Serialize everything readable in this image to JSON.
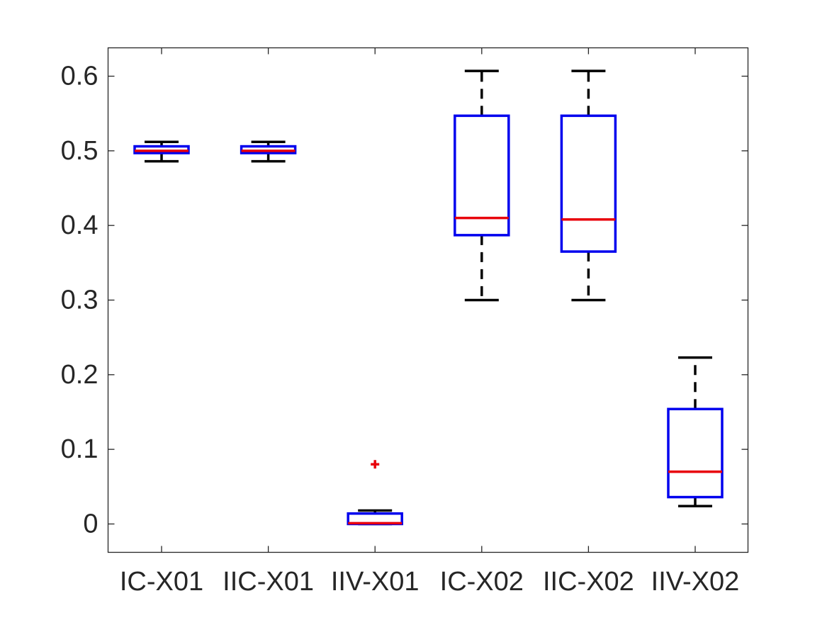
{
  "chart_data": {
    "type": "box",
    "title": "",
    "xlabel": "",
    "ylabel": "",
    "ylim": [
      -0.038,
      0.638
    ],
    "yticks": [
      0,
      0.1,
      0.2,
      0.3,
      0.4,
      0.5,
      0.6
    ],
    "ytick_labels": [
      "0",
      "0.1",
      "0.2",
      "0.3",
      "0.4",
      "0.5",
      "0.6"
    ],
    "categories": [
      "IC-X01",
      "IIC-X01",
      "IIV-X01",
      "IC-X02",
      "IIC-X02",
      "IIV-X02"
    ],
    "boxes": [
      {
        "whisker_low": 0.486,
        "q1": 0.497,
        "median": 0.5,
        "q3": 0.506,
        "whisker_high": 0.512,
        "outliers": []
      },
      {
        "whisker_low": 0.486,
        "q1": 0.497,
        "median": 0.5,
        "q3": 0.506,
        "whisker_high": 0.512,
        "outliers": []
      },
      {
        "whisker_low": 0.0,
        "q1": 0.0,
        "median": 0.001,
        "q3": 0.014,
        "whisker_high": 0.018,
        "outliers": [
          0.08
        ]
      },
      {
        "whisker_low": 0.3,
        "q1": 0.387,
        "median": 0.41,
        "q3": 0.547,
        "whisker_high": 0.607,
        "outliers": []
      },
      {
        "whisker_low": 0.3,
        "q1": 0.365,
        "median": 0.408,
        "q3": 0.547,
        "whisker_high": 0.607,
        "outliers": []
      },
      {
        "whisker_low": 0.024,
        "q1": 0.036,
        "median": 0.07,
        "q3": 0.154,
        "whisker_high": 0.223,
        "outliers": []
      }
    ],
    "grid": false,
    "colors": {
      "box": "#0000ee",
      "median": "#e8000b",
      "whisker": "#000000",
      "outlier": "#e8000b",
      "axis": "#262626"
    }
  }
}
